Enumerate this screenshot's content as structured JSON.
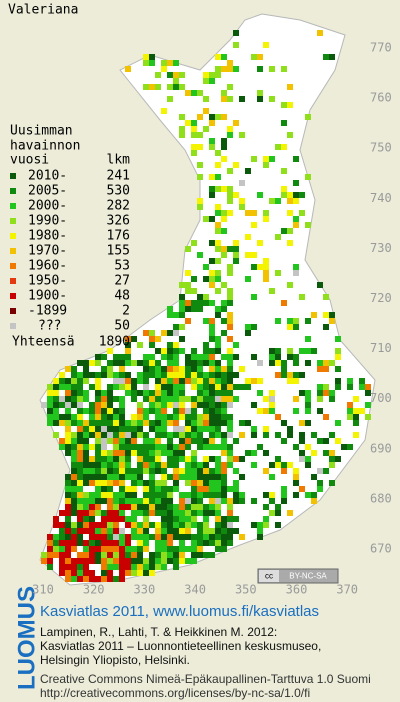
{
  "title": "Valeriana",
  "legend": {
    "heading": [
      "Uusimman",
      "havainnon"
    ],
    "col_headers": [
      "vuosi",
      "lkm"
    ],
    "rows": [
      {
        "label": "2010-",
        "count": 241,
        "color": "#0b5a0b"
      },
      {
        "label": "2005-",
        "count": 530,
        "color": "#0f8a0f"
      },
      {
        "label": "2000-",
        "count": 282,
        "color": "#22c41e"
      },
      {
        "label": "1990-",
        "count": 326,
        "color": "#8fe01a"
      },
      {
        "label": "1980-",
        "count": 176,
        "color": "#f4f400"
      },
      {
        "label": "1970-",
        "count": 155,
        "color": "#f2c200"
      },
      {
        "label": "1960-",
        "count": 53,
        "color": "#f07a00"
      },
      {
        "label": "1950-",
        "count": 27,
        "color": "#e43a10"
      },
      {
        "label": "1900-",
        "count": 48,
        "color": "#c80000"
      },
      {
        "label": "-1899",
        "count": 2,
        "color": "#7a0000"
      },
      {
        "label": "???",
        "count": 50,
        "color": "#c4c4c4"
      }
    ],
    "total_label": "Yhteensä",
    "total": 1890
  },
  "axes": {
    "y_ticks": [
      770,
      760,
      750,
      740,
      730,
      720,
      710,
      700,
      690,
      680,
      670
    ],
    "x_ticks": [
      310,
      320,
      330,
      340,
      350,
      360,
      370
    ]
  },
  "badge": {
    "cc": "cc",
    "text": "BY-NC-SA"
  },
  "logo": "LUOMUS",
  "footer": {
    "link": "Kasviatlas 2011, www.luomus.fi/kasviatlas",
    "citation": [
      "Lampinen, R., Lahti, T. & Heikkinen M. 2012:",
      "Kasviatlas 2011 – Luonnontieteellinen keskusmuseo,",
      "Helsingin Yliopisto, Helsinki."
    ],
    "license": [
      "Creative Commons Nimeä-Epäkaupallinen-Tarttuva 1.0 Suomi",
      "http://creativecommons.org/licenses/by-nc-sa/1.0/fi"
    ]
  }
}
